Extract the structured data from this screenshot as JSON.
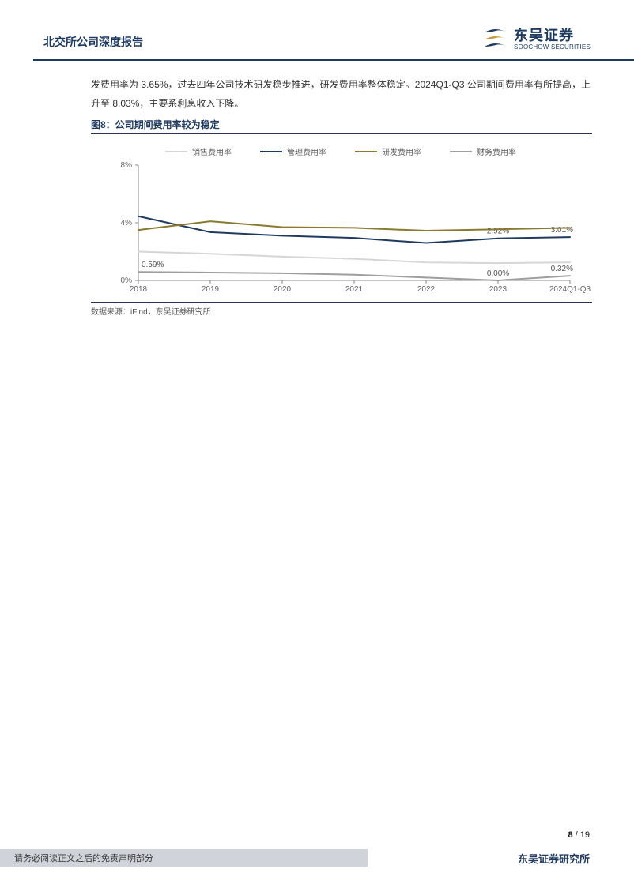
{
  "header": {
    "title": "北交所公司深度报告",
    "logo_cn": "东吴证券",
    "logo_en": "SOOCHOW SECURITIES",
    "logo_colors": {
      "primary": "#1f3a5f",
      "accent": "#c49a3a"
    }
  },
  "body_text": "发费用率为 3.65%，过去四年公司技术研发稳步推进，研发费用率整体稳定。2024Q1-Q3 公司期间费用率有所提高，上升至 8.03%，主要系利息收入下降。",
  "figure": {
    "caption": "图8：公司期间费用率较为稳定",
    "source": "数据来源：iFind，东吴证券研究所",
    "chart": {
      "type": "line",
      "categories": [
        "2018",
        "2019",
        "2020",
        "2021",
        "2022",
        "2023",
        "2024Q1-Q3"
      ],
      "ylim": [
        0,
        8
      ],
      "ytick_step": 4,
      "yformat_suffix": "%",
      "background_color": "#ffffff",
      "axis_color": "#888888",
      "tick_color": "#888888",
      "label_fontsize": 10,
      "label_color": "#666666",
      "line_width": 2,
      "series": [
        {
          "name": "销售费用率",
          "color": "#d6d6d6",
          "values": [
            2.0,
            1.85,
            1.65,
            1.5,
            1.25,
            1.2,
            1.25
          ]
        },
        {
          "name": "管理费用率",
          "color": "#1f3a5f",
          "values": [
            4.45,
            3.35,
            3.1,
            2.95,
            2.6,
            2.92,
            3.01
          ],
          "annotations": [
            {
              "i": 5,
              "text": "2.92%"
            },
            {
              "i": 6,
              "text": "3.01%"
            }
          ]
        },
        {
          "name": "研发费用率",
          "color": "#8a7a2f",
          "values": [
            3.5,
            4.1,
            3.7,
            3.65,
            3.45,
            3.55,
            3.65
          ]
        },
        {
          "name": "财务费用率",
          "color": "#9e9e9e",
          "values": [
            0.59,
            0.55,
            0.5,
            0.4,
            0.2,
            0.0,
            0.32
          ],
          "annotations": [
            {
              "i": 0,
              "text": "0.59%"
            },
            {
              "i": 5,
              "text": "0.00%"
            },
            {
              "i": 6,
              "text": "0.32%"
            }
          ]
        }
      ]
    }
  },
  "footer": {
    "page_current": "8",
    "page_total": "19",
    "page_sep": " / ",
    "disclaimer": "请务必阅读正文之后的免责声明部分",
    "institute": "东吴证券研究所"
  }
}
